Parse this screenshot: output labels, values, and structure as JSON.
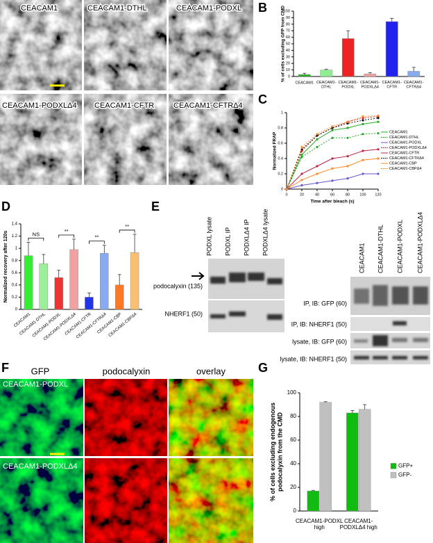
{
  "figure": {
    "panel_labels": [
      "A",
      "B",
      "C",
      "D",
      "E",
      "F",
      "G"
    ],
    "panel_a": {
      "images": [
        "CEACAM1",
        "CEACAM1-DTHL",
        "CEACAM1-PODXL",
        "CEACAM1-PODXLΔ4",
        "CEACAM1-CFTR",
        "CEACAM1-CFTRΔ4"
      ]
    },
    "panel_e": {
      "left_lanes": [
        "PODXL lysate",
        "PODXL IP",
        "PODXLΔ4 IP",
        "PODXLΔ4 lysate"
      ],
      "left_rows": [
        "podocalyxin (135)",
        "NHERF1 (50)"
      ],
      "right_lanes": [
        "CEACAM1",
        "CEACAM1-DTHL",
        "CEACAM1-PODXL",
        "CEACAM1-PODXLΔ4"
      ],
      "right_rows": [
        "IP, IB: GFP (60)",
        "IP, IB: NHERF1 (50)",
        "lysate, IB: GFP (60)",
        "lysate, IB: NHERF1 (50)"
      ]
    },
    "panel_f": {
      "columns": [
        "GFP",
        "podocalyxin",
        "overlay"
      ],
      "rows": [
        "CEACAM1-PODXL",
        "CEACAM1-PODXLΔ4"
      ]
    }
  },
  "chart_data": [
    {
      "type": "bar",
      "ylabel": "% of cells excluding GFP from CMD",
      "categories": [
        "CEACAM1",
        "CEACAM1-\nDTHL",
        "CEACAM1-\nPODXL",
        "CEACAM1-\nPODXLΔ4",
        "CEACAM1-\nCFTR",
        "CEACAM1-\nCFTRΔ4"
      ],
      "values": [
        3,
        10,
        58,
        4,
        84,
        8
      ],
      "errors": [
        2,
        1,
        12,
        2,
        5,
        6
      ],
      "colors": [
        "#22b022",
        "#90ee90",
        "#ee2222",
        "#f4a0a0",
        "#2222ee",
        "#88aaee"
      ],
      "ylim": [
        0,
        100
      ],
      "yticks": [
        0,
        10,
        20,
        30,
        40,
        50,
        60,
        70,
        80,
        90,
        100
      ]
    },
    {
      "type": "line",
      "ylabel": "Normalized FRAP",
      "xlabel": "Time after bleach (s)",
      "x": [
        0,
        20,
        40,
        60,
        80,
        100,
        120
      ],
      "series": [
        {
          "name": "CEACAM1",
          "color": "#22aa22",
          "dashed": false,
          "values": [
            0,
            0.45,
            0.65,
            0.77,
            0.8,
            0.85,
            0.88
          ]
        },
        {
          "name": "CEACAM1-DTHL",
          "color": "#22aa22",
          "dashed": true,
          "values": [
            0,
            0.42,
            0.55,
            0.67,
            0.67,
            0.72,
            0.73
          ]
        },
        {
          "name": "CEACAM1-PODXL",
          "color": "#6655cc",
          "dashed": false,
          "values": [
            0,
            0.05,
            0.08,
            0.11,
            0.14,
            0.2,
            0.2
          ]
        },
        {
          "name": "CEACAM1-PODXLΔ4",
          "color": "#dd2222",
          "dashed": true,
          "values": [
            0,
            0.5,
            0.7,
            0.8,
            0.88,
            0.93,
            0.95
          ]
        },
        {
          "name": "CEACAM1-CFTR",
          "color": "#bb2244",
          "dashed": false,
          "values": [
            0,
            0.2,
            0.3,
            0.4,
            0.43,
            0.5,
            0.52
          ]
        },
        {
          "name": "CEACAM1-CFTRΔ4",
          "color": "#111111",
          "dashed": true,
          "values": [
            0,
            0.52,
            0.7,
            0.8,
            0.86,
            0.9,
            0.93
          ]
        },
        {
          "name": "CEACAM1-CBP",
          "color": "#ff8822",
          "dashed": false,
          "values": [
            0,
            0.12,
            0.2,
            0.27,
            0.3,
            0.38,
            0.4
          ]
        },
        {
          "name": "CEACAM1-CBPΔ4",
          "color": "#ff8822",
          "dashed": true,
          "values": [
            0,
            0.55,
            0.72,
            0.82,
            0.88,
            0.95,
            0.96
          ]
        }
      ],
      "xlim": [
        0,
        120
      ],
      "xticks": [
        0,
        20,
        40,
        60,
        80,
        100,
        120
      ],
      "ylim": [
        0,
        1
      ],
      "yticks": [
        0,
        0.2,
        0.4,
        0.6,
        0.8,
        1
      ],
      "legend": "right"
    },
    {
      "type": "bar",
      "ylabel": "Normalized recovery after 120s",
      "categories": [
        "CEACAM1",
        "CEACAM1-DTHL",
        "CEACAM1-PODXL",
        "CEACAM1-PODXLΔ4",
        "CEACAM1-CFTR",
        "CEACAM1-CFTRΔ4",
        "CEACAM1-CBP",
        "CEACAM1-CBPΔ4"
      ],
      "values": [
        0.88,
        0.75,
        0.52,
        0.98,
        0.2,
        0.92,
        0.4,
        0.93
      ],
      "errors": [
        0.22,
        0.15,
        0.12,
        0.17,
        0.07,
        0.13,
        0.17,
        0.3
      ],
      "colors": [
        "#33ee33",
        "#99f099",
        "#ee3333",
        "#f4a0a0",
        "#2233ee",
        "#88aaf0",
        "#ff7722",
        "#f8c070"
      ],
      "annotations": [
        "NS",
        "**",
        "**",
        "**"
      ],
      "ylim": [
        0,
        1.4
      ],
      "yticks": [
        0,
        0.2,
        0.4,
        0.6,
        0.8,
        1,
        1.2,
        1.4
      ]
    },
    {
      "type": "bar",
      "ylabel": "% of cells excluding endogenous\npodocalyxin from the CMD",
      "categories": [
        "CEACAM1-PODXL\nhigh",
        "CEACAM1-\nPODXLΔ4 high"
      ],
      "series": [
        {
          "name": "GFP+",
          "color": "#11bb11",
          "values": [
            17,
            83
          ],
          "errors": [
            0.5,
            2
          ]
        },
        {
          "name": "GFP-",
          "color": "#c0c0c0",
          "values": [
            92,
            86
          ],
          "errors": [
            0.5,
            4
          ]
        }
      ],
      "ylim": [
        0,
        100
      ],
      "yticks": [
        0,
        20,
        40,
        60,
        80,
        100
      ],
      "legend": "right"
    }
  ]
}
